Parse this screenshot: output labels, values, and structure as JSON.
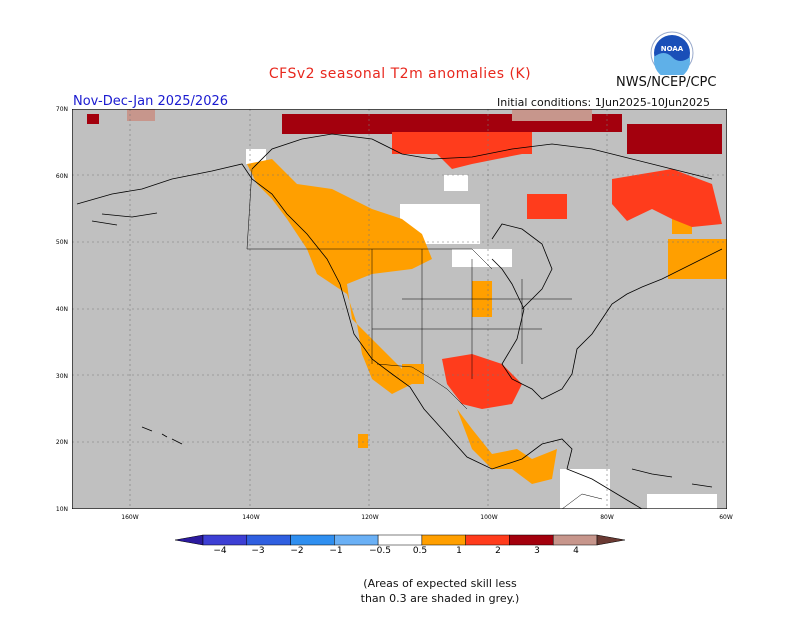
{
  "title": "CFSv2 seasonal T2m anomalies (K)",
  "agency": "NWS/NCEP/CPC",
  "logo_text": "NOAA",
  "season": "Nov-Dec-Jan 2025/2026",
  "initial_conditions": "Initial conditions: 1Jun2025-10Jun2025",
  "lat_labels": [
    "70N",
    "60N",
    "50N",
    "40N",
    "30N",
    "20N",
    "10N"
  ],
  "lon_labels": [
    "160W",
    "140W",
    "120W",
    "100W",
    "80W",
    "60W"
  ],
  "colorbar": {
    "labels": [
      "−4",
      "−3",
      "−2",
      "−1",
      "−0.5",
      "0.5",
      "1",
      "2",
      "3",
      "4"
    ],
    "colors": [
      "#2b1a9e",
      "#3d3fd4",
      "#2f5fe0",
      "#2f8ff0",
      "#6ab0f5",
      "#ffffff",
      "#ff9f00",
      "#ff3c1c",
      "#a3000d",
      "#c7968c",
      "#6b3a33"
    ]
  },
  "legend_note": {
    "line1": "(Areas of expected skill less",
    "line2": "than 0.3 are shaded in grey.)"
  },
  "colors": {
    "grey": "#c0c0c0",
    "orange": "#ff9f00",
    "red": "#ff3c1c",
    "darkred": "#a3000d",
    "pink": "#c7968c",
    "white": "#ffffff"
  }
}
